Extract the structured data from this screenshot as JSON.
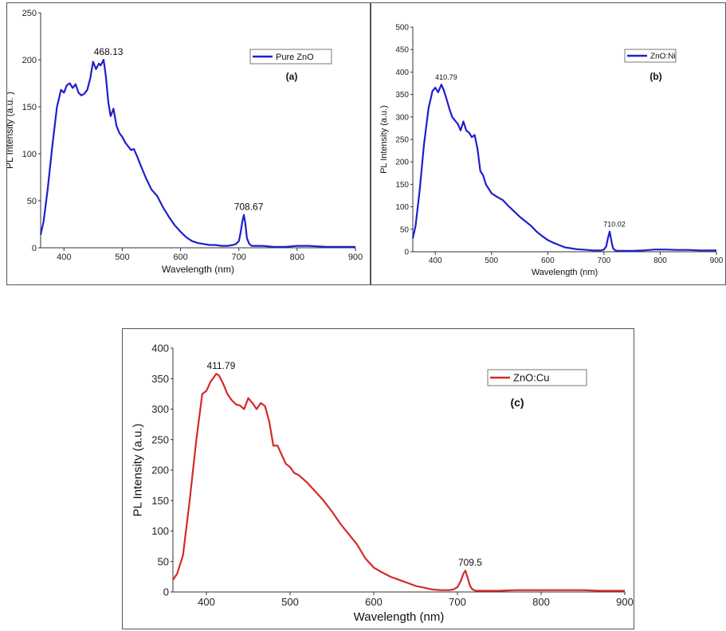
{
  "chart_data": [
    {
      "type": "line",
      "panel_label": "(a)",
      "xlabel": "Wavelength (nm)",
      "ylabel": "PL Intensity (a.u. )",
      "xlim": [
        360,
        900
      ],
      "ylim": [
        0,
        250
      ],
      "xticks": [
        400,
        500,
        600,
        700,
        800,
        900
      ],
      "yticks": [
        0,
        50,
        100,
        150,
        200,
        250
      ],
      "legend_position": "top-right",
      "series": [
        {
          "name": "Pure ZnO",
          "color": "#1f1fcc",
          "x": [
            360,
            365,
            372,
            380,
            388,
            395,
            400,
            405,
            410,
            415,
            420,
            425,
            430,
            435,
            440,
            445,
            450,
            455,
            460,
            463,
            468,
            472,
            476,
            480,
            485,
            490,
            495,
            500,
            505,
            510,
            515,
            520,
            525,
            530,
            540,
            550,
            560,
            570,
            580,
            590,
            600,
            610,
            620,
            630,
            640,
            650,
            660,
            670,
            680,
            690,
            695,
            700,
            703,
            706,
            708.67,
            711,
            714,
            718,
            722,
            730,
            740,
            760,
            780,
            800,
            820,
            850,
            880,
            900
          ],
          "y": [
            14,
            28,
            62,
            108,
            150,
            168,
            165,
            173,
            175,
            170,
            174,
            165,
            162,
            164,
            168,
            180,
            198,
            190,
            196,
            194,
            200,
            182,
            155,
            140,
            148,
            130,
            122,
            118,
            112,
            108,
            104,
            105,
            98,
            90,
            75,
            62,
            55,
            43,
            33,
            24,
            17,
            11,
            7,
            5,
            4,
            3,
            3,
            2,
            2,
            3,
            4,
            7,
            16,
            28,
            35,
            26,
            10,
            4,
            2,
            2,
            2,
            1,
            1,
            2,
            2,
            1,
            1,
            1
          ]
        }
      ],
      "annotations": [
        {
          "text": "468.13",
          "x": 468.13,
          "y": 200
        },
        {
          "text": "708.67",
          "x": 708.67,
          "y": 35
        }
      ]
    },
    {
      "type": "line",
      "panel_label": "(b)",
      "xlabel": "Wavelength (nm)",
      "ylabel": "PL Intensity (a.u.)",
      "xlim": [
        360,
        900
      ],
      "ylim": [
        0,
        500
      ],
      "xticks": [
        400,
        500,
        600,
        700,
        800,
        900
      ],
      "yticks": [
        0,
        50,
        100,
        150,
        200,
        250,
        300,
        350,
        400,
        450,
        500
      ],
      "legend_position": "top-right",
      "series": [
        {
          "name": "ZnO:Ni",
          "color": "#1f1fcc",
          "x": [
            360,
            365,
            372,
            380,
            388,
            395,
            400,
            405,
            410.79,
            415,
            420,
            425,
            430,
            435,
            440,
            445,
            450,
            455,
            460,
            465,
            470,
            475,
            480,
            485,
            490,
            495,
            500,
            510,
            520,
            530,
            540,
            550,
            560,
            570,
            580,
            590,
            600,
            610,
            620,
            630,
            640,
            650,
            660,
            670,
            680,
            690,
            695,
            700,
            704,
            707,
            710.02,
            713,
            716,
            720,
            725,
            730,
            750,
            770,
            790,
            810,
            830,
            850,
            870,
            890,
            900
          ],
          "y": [
            30,
            58,
            135,
            240,
            320,
            358,
            365,
            355,
            372,
            360,
            340,
            318,
            300,
            292,
            285,
            270,
            290,
            270,
            265,
            255,
            260,
            230,
            180,
            170,
            150,
            140,
            130,
            122,
            115,
            102,
            90,
            78,
            68,
            58,
            45,
            35,
            26,
            20,
            15,
            10,
            8,
            6,
            5,
            4,
            3,
            3,
            3,
            5,
            12,
            30,
            45,
            25,
            8,
            3,
            2,
            2,
            2,
            3,
            5,
            5,
            4,
            4,
            3,
            3,
            3
          ]
        }
      ],
      "annotations": [
        {
          "text": "410.79",
          "x": 410.79,
          "y": 372
        },
        {
          "text": "710.02",
          "x": 710.02,
          "y": 45
        }
      ]
    },
    {
      "type": "line",
      "panel_label": "(c)",
      "xlabel": "Wavelength (nm)",
      "ylabel": "PL Intensity (a.u.)",
      "xlim": [
        360,
        900
      ],
      "ylim": [
        0,
        400
      ],
      "xticks": [
        400,
        500,
        600,
        700,
        800,
        900
      ],
      "yticks": [
        0,
        50,
        100,
        150,
        200,
        250,
        300,
        350,
        400
      ],
      "legend_position": "top-right",
      "series": [
        {
          "name": "ZnO:Cu",
          "color": "#d42a2a",
          "x": [
            360,
            365,
            372,
            380,
            388,
            395,
            400,
            405,
            411.79,
            415,
            420,
            425,
            430,
            435,
            440,
            445,
            450,
            455,
            460,
            465,
            470,
            475,
            480,
            485,
            490,
            495,
            500,
            505,
            510,
            520,
            530,
            540,
            550,
            560,
            570,
            580,
            590,
            600,
            610,
            620,
            630,
            640,
            650,
            660,
            670,
            680,
            690,
            695,
            700,
            704,
            707,
            709.5,
            712,
            715,
            718,
            722,
            730,
            750,
            770,
            790,
            810,
            830,
            850,
            870,
            890,
            900
          ],
          "y": [
            20,
            30,
            60,
            150,
            250,
            325,
            330,
            345,
            358,
            355,
            342,
            325,
            315,
            308,
            306,
            300,
            318,
            310,
            300,
            310,
            305,
            280,
            240,
            240,
            225,
            210,
            205,
            195,
            192,
            180,
            165,
            150,
            132,
            112,
            95,
            78,
            55,
            40,
            32,
            25,
            20,
            15,
            10,
            7,
            4,
            3,
            3,
            4,
            8,
            18,
            30,
            35,
            24,
            10,
            4,
            2,
            2,
            2,
            3,
            3,
            3,
            3,
            3,
            2,
            2,
            2
          ]
        }
      ],
      "annotations": [
        {
          "text": "411.79",
          "x": 411.79,
          "y": 358
        },
        {
          "text": "709.5",
          "x": 709.5,
          "y": 35
        }
      ]
    }
  ]
}
